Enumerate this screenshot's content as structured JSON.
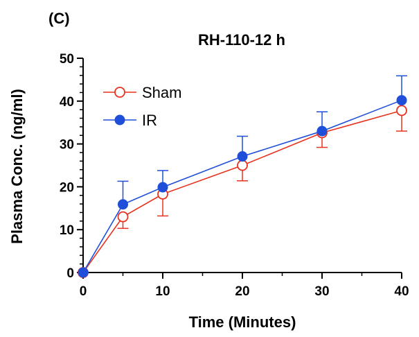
{
  "panel_label": "(C)",
  "chart_data": {
    "type": "line",
    "title": "RH-110-12 h",
    "xlabel": "Time (Minutes)",
    "ylabel": "Plasma Conc. (ng/ml)",
    "xlim": [
      0,
      40
    ],
    "ylim": [
      0,
      50
    ],
    "xticks": [
      0,
      10,
      20,
      30,
      40
    ],
    "yticks": [
      0,
      10,
      20,
      30,
      40,
      50
    ],
    "grid": false,
    "legend_position": "top-left",
    "x": [
      0,
      5,
      10,
      20,
      30,
      40
    ],
    "series": [
      {
        "name": "Sham",
        "color": "#e8321e",
        "marker": "open-circle",
        "values": [
          0,
          13.0,
          18.3,
          25.0,
          32.6,
          37.8
        ],
        "error_plus": [
          0,
          0,
          0,
          0,
          0,
          0
        ],
        "error_minus": [
          0,
          2.7,
          5.1,
          3.6,
          3.4,
          4.8
        ]
      },
      {
        "name": "IR",
        "color": "#1f4ed8",
        "marker": "filled-circle",
        "values": [
          0,
          15.9,
          19.9,
          27.1,
          33.0,
          40.2
        ],
        "error_plus": [
          0,
          5.4,
          3.9,
          4.7,
          4.5,
          5.7
        ],
        "error_minus": [
          0,
          0,
          0,
          0,
          0,
          0
        ]
      }
    ]
  }
}
